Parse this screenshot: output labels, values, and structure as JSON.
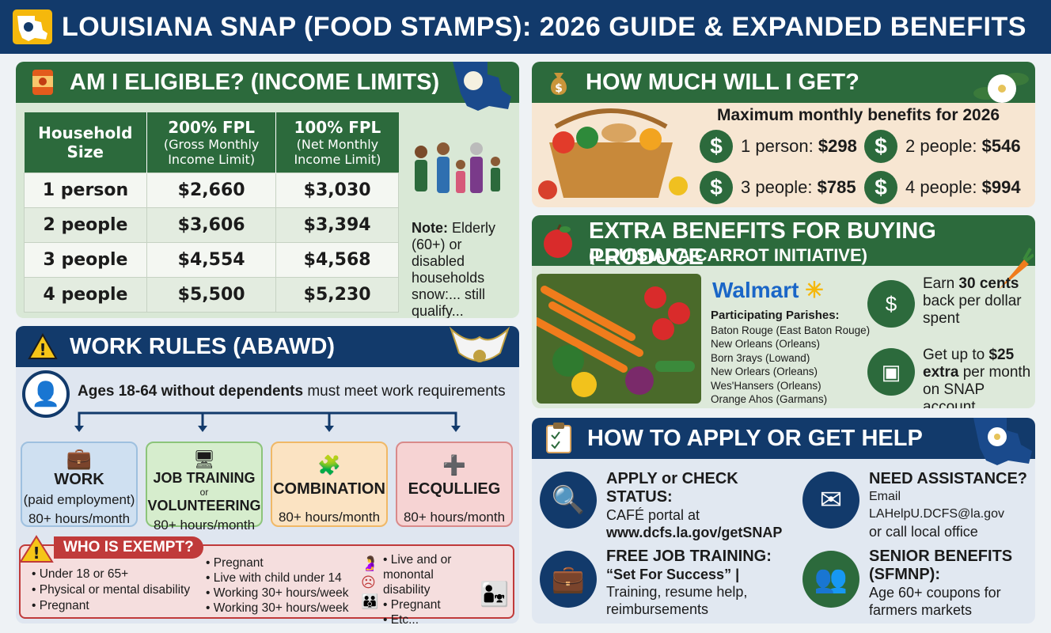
{
  "header": {
    "title": "LOUISIANA SNAP (FOOD STAMPS): 2026 GUIDE & EXPANDED BENEFITS"
  },
  "eligibility": {
    "title": "AM I ELIGIBLE? (INCOME LIMITS)",
    "columns": [
      {
        "label": "Household Size",
        "sub": ""
      },
      {
        "label": "200% FPL",
        "sub": "(Gross Monthly Income Limit)"
      },
      {
        "label": "100% FPL",
        "sub": "(Net Monthly Income Limit)"
      }
    ],
    "rows": [
      [
        "1 person",
        "$2,660",
        "$3,030"
      ],
      [
        "2 people",
        "$3,606",
        "$3,394"
      ],
      [
        "3 people",
        "$4,554",
        "$4,568"
      ],
      [
        "4 people",
        "$5,500",
        "$5,230"
      ]
    ],
    "note_label": "Note:",
    "note_text": "Elderly (60+) or disabled households snow:... still qualify..."
  },
  "benefits": {
    "title": "HOW MUCH WILL I GET?",
    "subtitle": "Maximum monthly benefits for 2026",
    "items": [
      {
        "label": "1 person:",
        "value": "$298"
      },
      {
        "label": "2 people:",
        "value": "$546"
      },
      {
        "label": "3 people:",
        "value": "$785"
      },
      {
        "label": "4 people:",
        "value": "$994"
      }
    ]
  },
  "extra": {
    "title": "EXTRA BENEFITS FOR BUYING PRODUCE",
    "subtitle": "(LOUISIANA CARROT INITIATIVE)",
    "brand": "Walmart",
    "parishes_title": "Participating Parishes:",
    "parishes": [
      "Baton Rouge (East Baton Rouge)",
      "New Orleans (Orleans)",
      "Born 3rays (Lowand)",
      "New Orlears (Orleans)",
      "Wes'Hansers (Orleans)",
      "Orange Ahos (Garmans)"
    ],
    "perks": [
      {
        "pre": "Earn ",
        "bold": "30 cents",
        "post": " back per dollar spent"
      },
      {
        "pre": "Get up to ",
        "bold": "$25 extra",
        "post": " per month on SNAP account"
      }
    ]
  },
  "work": {
    "title": "WORK RULES (ABAWD)",
    "intro_bold": "Ages 18-64 without dependents",
    "intro_rest": " must meet work requirements",
    "cards": [
      {
        "title": "WORK",
        "sub": "(paid employment)",
        "hours": "80+ hours/month",
        "color": "#9ec0df",
        "bg": "#cfe0f1"
      },
      {
        "title": "JOB TRAINING",
        "or": "or",
        "title2": "VOLUNTEERING",
        "hours": "80+ hours/month",
        "color": "#8cc47a",
        "bg": "#d6edcd"
      },
      {
        "title": "COMBINATION",
        "hours": "80+ hours/month",
        "color": "#f0b866",
        "bg": "#fbe3c2"
      },
      {
        "title": "ECQULLIEG",
        "hours": "80+ hours/month",
        "color": "#d98a8a",
        "bg": "#f6d3d3"
      }
    ],
    "exempt_title": "WHO IS EXEMPT?",
    "exempt_col1": [
      "Under 18 or 65+",
      "Physical or mental disability",
      "Pregnant"
    ],
    "exempt_col2": [
      "Pregnant",
      "Live with child under 14",
      "Working 30+ hours/week",
      "Working 30+ hours/week"
    ],
    "exempt_col3": [
      "Live and or monontal disability",
      "Pregnant",
      "Etc..."
    ]
  },
  "apply": {
    "title": "HOW TO APPLY OR GET HELP",
    "items": [
      {
        "title": "APPLY or CHECK STATUS:",
        "lines": [
          "CAFÉ portal at",
          "www.dcfs.la.gov/getSNAP"
        ]
      },
      {
        "title": "NEED ASSISTANCE?",
        "lines": [
          "Email LAHelpU.DCFS@la.gov",
          "or call local office"
        ]
      },
      {
        "title": "FREE JOB TRAINING:",
        "lines": [
          "“Set For Success” |",
          "Training, resume help,",
          "reimbursements"
        ]
      },
      {
        "title": "SENIOR BENEFITS",
        "lines": [
          "(SFMNP):",
          "Age 60+ coupons for",
          "farmers markets"
        ]
      }
    ]
  },
  "colors": {
    "navy": "#123a6b",
    "green": "#2c6a3c",
    "walmart_blue": "#1a66c7",
    "walmart_yellow": "#f5b80c"
  }
}
